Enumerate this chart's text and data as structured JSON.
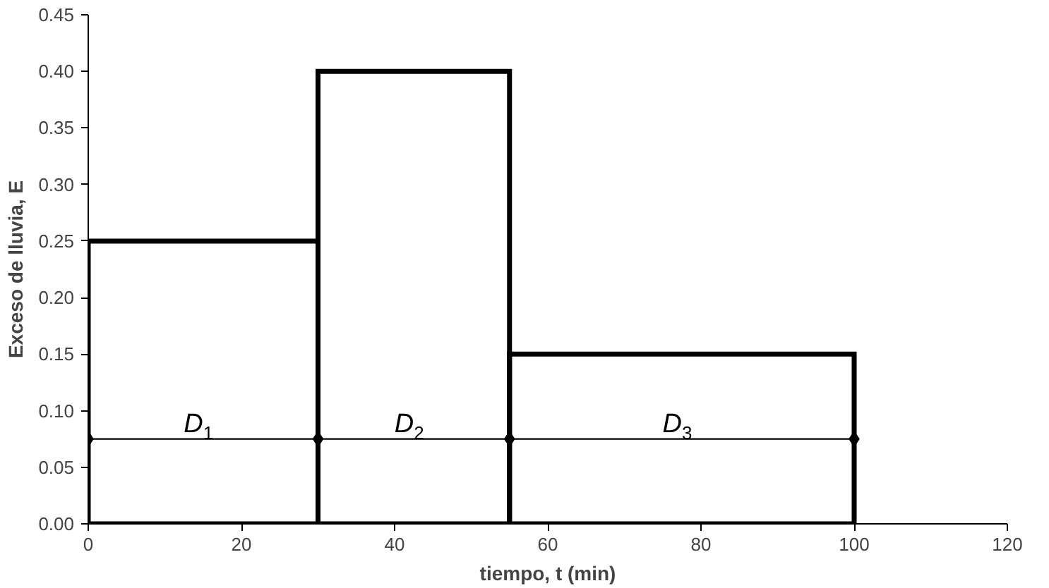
{
  "chart_data": {
    "type": "histogram",
    "bins": [
      0,
      30,
      55,
      100
    ],
    "values": [
      0.25,
      0.4,
      0.15
    ],
    "color": "#000000",
    "series": [
      {
        "type": "line",
        "x": [
          0,
          30,
          55,
          100
        ],
        "values": [
          0.075,
          0.075,
          0.075,
          0.075
        ],
        "color": "#000000",
        "marker": "diamond"
      }
    ],
    "xlabel": "tiempo, t (min)",
    "ylabel": "Exceso de lluvia, E",
    "xlim": [
      0,
      120
    ],
    "xticks": [
      0,
      20,
      40,
      60,
      80,
      100,
      120
    ],
    "ylim": [
      0,
      0.45
    ],
    "yticks": [
      {
        "value": 0,
        "label": "0.00"
      },
      {
        "value": 0.05,
        "label": "0.05"
      },
      {
        "value": 0.1,
        "label": "0.10"
      },
      {
        "value": 0.15,
        "label": "0.15"
      },
      {
        "value": 0.2,
        "label": "0.20"
      },
      {
        "value": 0.25,
        "label": "0.25"
      },
      {
        "value": 0.3,
        "label": "0.30"
      },
      {
        "value": 0.35,
        "label": "0.35"
      },
      {
        "value": 0.4,
        "label": "0.40"
      },
      {
        "value": 0.45,
        "label": "0.45"
      }
    ],
    "annotations": [
      {
        "text": "D$_{1}$",
        "x": 15,
        "y": 0.075
      },
      {
        "text": "D$_{2}$",
        "x": 42.5,
        "y": 0.075
      },
      {
        "text": "D$_{3}$",
        "x": 77.5,
        "y": 0.075
      }
    ],
    "grid": false
  }
}
